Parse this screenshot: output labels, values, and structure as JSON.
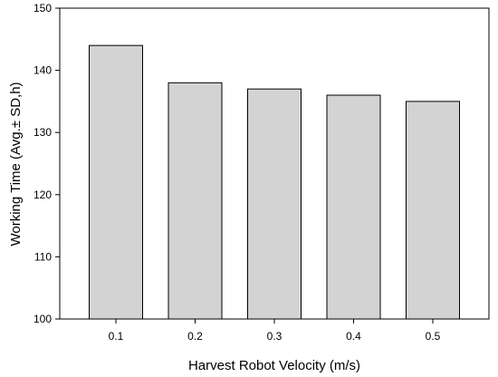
{
  "chart_data": {
    "type": "bar",
    "title": "",
    "xlabel": "Harvest Robot Velocity (m/s)",
    "ylabel": "Working Time (Avg.± SD,h)",
    "categories": [
      "0.1",
      "0.2",
      "0.3",
      "0.4",
      "0.5"
    ],
    "values": [
      144,
      138,
      137,
      136,
      135
    ],
    "ylim": [
      100,
      150
    ],
    "yticks": [
      "100",
      "110",
      "120",
      "130",
      "140",
      "150"
    ],
    "grid": false,
    "legend": "none",
    "colors": {
      "bar_fill": "#d3d3d3",
      "bar_stroke": "#000000",
      "axis": "#000000"
    }
  }
}
